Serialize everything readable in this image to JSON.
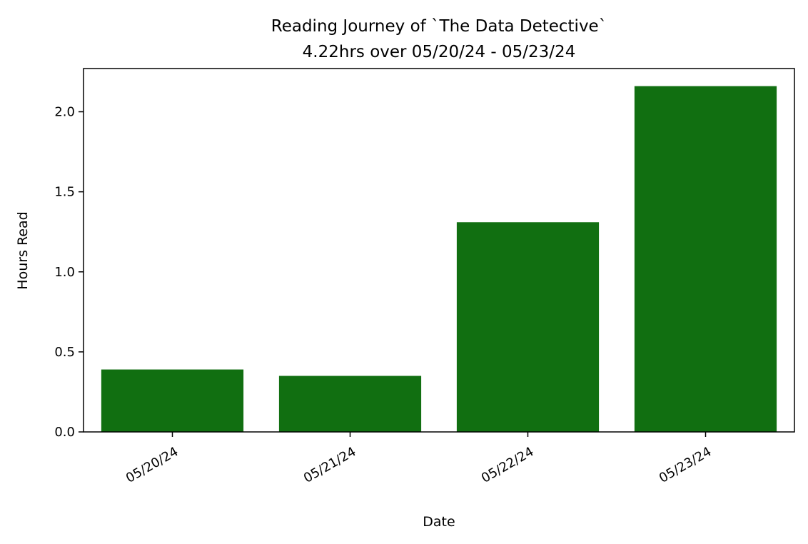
{
  "chart_data": {
    "type": "bar",
    "title": "Reading Journey of `The Data Detective`",
    "subtitle": "4.22hrs over 05/20/24 - 05/23/24",
    "xlabel": "Date",
    "ylabel": "Hours Read",
    "categories": [
      "05/20/24",
      "05/21/24",
      "05/22/24",
      "05/23/24"
    ],
    "values": [
      0.39,
      0.35,
      1.31,
      2.16
    ],
    "ylim": [
      0,
      2.27
    ],
    "yticks": [
      0.0,
      0.5,
      1.0,
      1.5,
      2.0
    ],
    "ytick_labels": [
      "0.0",
      "0.5",
      "1.0",
      "1.5",
      "2.0"
    ],
    "bar_color": "#116f11",
    "grid": false,
    "legend": false
  }
}
